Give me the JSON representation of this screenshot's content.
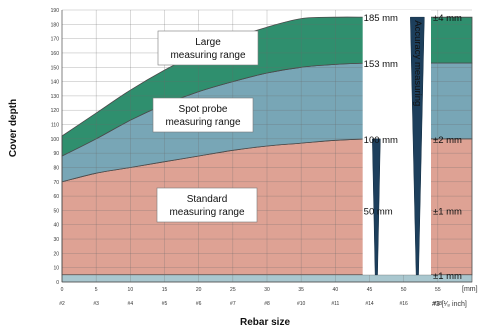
{
  "chart_data": {
    "type": "area",
    "xlabel": "Rebar size",
    "ylabel": "Cover depth",
    "x_unit_mm": "[mm]",
    "x_unit_inch": "#3 [¹⁄₈ inch]",
    "xlim": [
      0,
      60
    ],
    "ylim": [
      0,
      190
    ],
    "grid": true,
    "x_ticks_mm": [
      "0",
      "5",
      "10",
      "15",
      "20",
      "25",
      "30",
      "35",
      "40",
      "45",
      "50",
      "55"
    ],
    "x_ticks_inch": [
      "#2",
      "#3",
      "#4",
      "#5",
      "#6",
      "#7",
      "#8",
      "#10",
      "#11",
      "#14",
      "#16",
      "#18"
    ],
    "y_ticks": [
      "0",
      "10",
      "20",
      "30",
      "40",
      "50",
      "60",
      "70",
      "80",
      "90",
      "100",
      "110",
      "120",
      "130",
      "140",
      "150",
      "160",
      "170",
      "180",
      "190"
    ],
    "x": [
      0,
      5,
      10,
      15,
      20,
      25,
      30,
      35,
      40,
      45,
      50,
      55,
      60
    ],
    "series": [
      {
        "name": "Standard measuring range",
        "color": "#dea294",
        "lower": [
          5,
          5,
          5,
          5,
          5,
          5,
          5,
          5,
          5,
          5,
          5,
          5,
          5
        ],
        "upper": [
          70,
          76,
          80,
          84,
          88,
          92,
          95,
          97,
          99,
          100,
          100,
          100,
          100
        ]
      },
      {
        "name": "Spot probe measuring range",
        "color": "#78a6b6",
        "lower": [
          70,
          76,
          80,
          84,
          88,
          92,
          95,
          97,
          99,
          100,
          100,
          100,
          100
        ],
        "upper": [
          88,
          100,
          113,
          124,
          133,
          140,
          146,
          150,
          152,
          153,
          153,
          153,
          153
        ]
      },
      {
        "name": "Large measuring range",
        "color": "#2f8f6e",
        "lower": [
          88,
          100,
          113,
          124,
          133,
          140,
          146,
          150,
          152,
          153,
          153,
          153,
          153
        ],
        "upper": [
          102,
          118,
          134,
          148,
          160,
          170,
          178,
          184,
          185,
          185,
          185,
          185,
          185
        ]
      }
    ],
    "base_band": {
      "lower": 0,
      "upper": 5,
      "color": "#a9c7cf"
    },
    "accuracy_column": {
      "x_from": 44,
      "x_to": 54,
      "label": "Accuracy measuring"
    },
    "accuracy_markers": [
      {
        "x": 46,
        "top": 100
      },
      {
        "x": 52,
        "top": 185
      }
    ],
    "annotations": [
      {
        "label": "185 mm",
        "y": 185
      },
      {
        "label": "153 mm",
        "y": 153
      },
      {
        "label": "100 mm",
        "y": 100
      },
      {
        "label": "50 mm",
        "y": 50
      }
    ],
    "accuracy_labels": [
      {
        "label": "±4 mm",
        "y": 185
      },
      {
        "label": "±2 mm",
        "y": 100
      },
      {
        "label": "±1 mm",
        "y": 50
      },
      {
        "label": "±1 mm",
        "y": 5
      }
    ],
    "region_labels": [
      {
        "lines": [
          "Large",
          "measuring range"
        ]
      },
      {
        "lines": [
          "Spot probe",
          "measuring range"
        ]
      },
      {
        "lines": [
          "Standard",
          "measuring range"
        ]
      }
    ]
  }
}
